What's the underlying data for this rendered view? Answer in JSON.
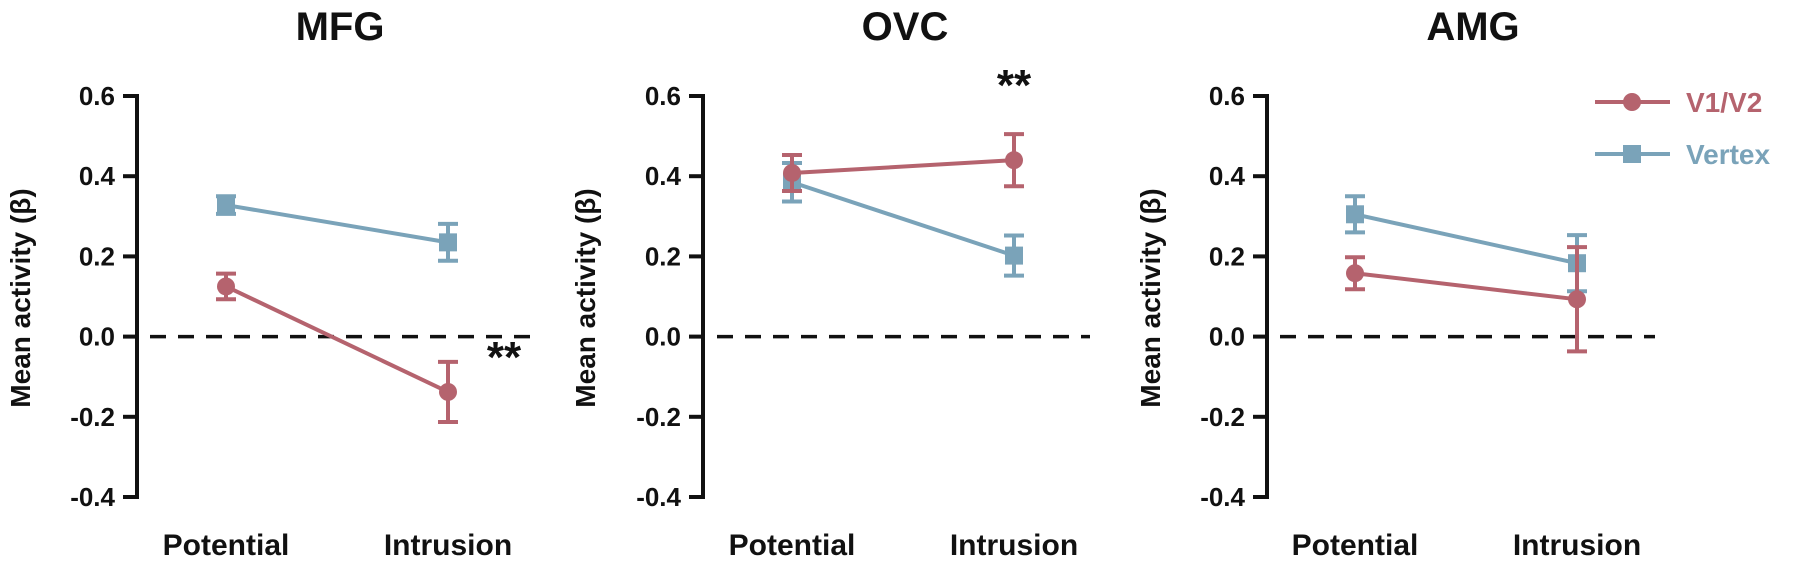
{
  "chart_data": [
    {
      "type": "line",
      "title": "MFG",
      "ylabel": "Mean activity (β)",
      "ylim": [
        -0.4,
        0.6
      ],
      "yticks": [
        "-0.4",
        "-0.2",
        "0.0",
        "0.2",
        "0.4",
        "0.6"
      ],
      "categories": [
        "Potential",
        "Intrusion"
      ],
      "series": [
        {
          "name": "V1/V2",
          "values": [
            0.125,
            -0.138
          ],
          "errors": [
            0.032,
            0.075
          ]
        },
        {
          "name": "Vertex",
          "values": [
            0.328,
            0.235
          ],
          "errors": [
            0.022,
            0.046
          ]
        }
      ],
      "annotations": [
        {
          "text": "**",
          "category": "Intrusion"
        }
      ]
    },
    {
      "type": "line",
      "title": "OVC",
      "ylabel": "Mean activity (β)",
      "ylim": [
        -0.4,
        0.6
      ],
      "yticks": [
        "-0.4",
        "-0.2",
        "0.0",
        "0.2",
        "0.4",
        "0.6"
      ],
      "categories": [
        "Potential",
        "Intrusion"
      ],
      "series": [
        {
          "name": "V1/V2",
          "values": [
            0.408,
            0.44
          ],
          "errors": [
            0.045,
            0.065
          ]
        },
        {
          "name": "Vertex",
          "values": [
            0.385,
            0.202
          ],
          "errors": [
            0.048,
            0.05
          ]
        }
      ],
      "annotations": [
        {
          "text": "**",
          "category": "Intrusion"
        }
      ]
    },
    {
      "type": "line",
      "title": "AMG",
      "ylabel": "Mean activity (β)",
      "ylim": [
        -0.4,
        0.6
      ],
      "yticks": [
        "-0.4",
        "-0.2",
        "0.0",
        "0.2",
        "0.4",
        "0.6"
      ],
      "categories": [
        "Potential",
        "Intrusion"
      ],
      "series": [
        {
          "name": "V1/V2",
          "values": [
            0.158,
            0.093
          ],
          "errors": [
            0.04,
            0.13
          ]
        },
        {
          "name": "Vertex",
          "values": [
            0.305,
            0.183
          ],
          "errors": [
            0.045,
            0.07
          ]
        }
      ],
      "annotations": []
    }
  ],
  "legend": {
    "placement": "top-right",
    "items": [
      {
        "name": "V1/V2",
        "color": "#b5636e",
        "marker": "circle"
      },
      {
        "name": "Vertex",
        "color": "#7aa3b9",
        "marker": "square"
      }
    ]
  },
  "colors": {
    "V1/V2": "#b5636e",
    "Vertex": "#7aa3b9",
    "axis": "#111111"
  }
}
